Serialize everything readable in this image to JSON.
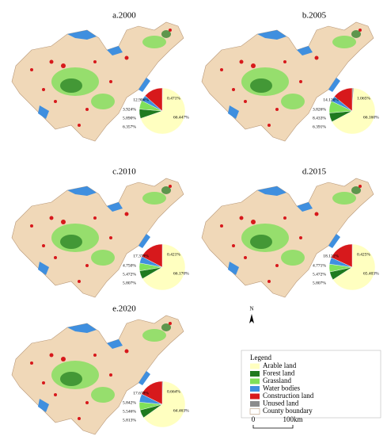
{
  "figure": {
    "classes_colors": [
      "#ffffc0",
      "#1f7a1f",
      "#7fe05a",
      "#3f8fdf",
      "#d7191c",
      "#8c8c8c"
    ],
    "panels": [
      {
        "title": "a.2000",
        "shares": [
          66.447,
          6.357,
          5.89,
          3.924,
          12.906,
          0.471
        ],
        "share_labels": [
          "66.447%",
          "6.357%",
          "5.890%",
          "3.924%",
          "12.906%",
          "0.471%"
        ]
      },
      {
        "title": "b.2005",
        "shares": [
          66.16,
          6.391,
          8.433,
          3.826,
          14.126,
          1.065
        ],
        "share_labels": [
          "66.160%",
          "6.391%",
          "8.433%",
          "3.826%",
          "14.126%",
          "1.065%"
        ]
      },
      {
        "title": "c.2010",
        "shares": [
          66.17,
          5.807,
          5.472,
          4.75,
          17.379,
          0.421
        ],
        "share_labels": [
          "66.170%",
          "5.807%",
          "5.472%",
          "4.750%",
          "17.379%",
          "0.421%"
        ]
      },
      {
        "title": "d.2015",
        "shares": [
          65.403,
          5.807,
          5.472,
          4.771,
          18.121,
          0.425
        ],
        "share_labels": [
          "65.403%",
          "5.807%",
          "5.472%",
          "4.771%",
          "18.121%",
          "0.425%"
        ]
      },
      {
        "title": "e.2020",
        "shares": [
          64.463,
          5.813,
          5.546,
          5.842,
          17.678,
          0.664
        ],
        "share_labels": [
          "64.463%",
          "5.813%",
          "5.546%",
          "5.842%",
          "17.678%",
          "0.664%"
        ]
      }
    ],
    "legend": {
      "title": "Legend",
      "items": [
        "Arable land",
        "Forest land",
        "Grassland",
        "Water bodies",
        "Construction land",
        "Unused land",
        "County boundary"
      ]
    },
    "north": "N",
    "scale": [
      "0",
      "100km"
    ]
  }
}
